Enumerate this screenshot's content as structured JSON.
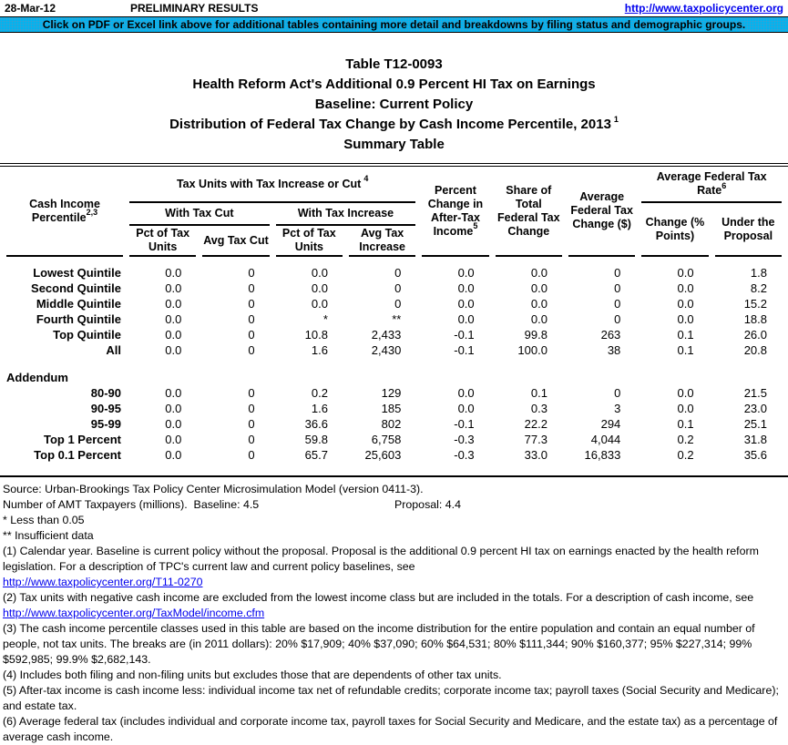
{
  "header_bar": {
    "date": "28-Mar-12",
    "status": "PRELIMINARY RESULTS",
    "url": "http://www.taxpolicycenter.org"
  },
  "banner": {
    "text": "Click on PDF or Excel link above for additional tables containing more detail and breakdowns by filing status and demographic groups.",
    "background_color": "#00B0F0"
  },
  "title": {
    "line1": "Table T12-0093",
    "line2": "Health Reform Act's Additional 0.9 Percent HI Tax on Earnings",
    "line3": "Baseline: Current Policy",
    "line4_text": "Distribution of Federal Tax Change by Cash Income Percentile, 2013",
    "line4_sup": "1",
    "line5": "Summary Table"
  },
  "table": {
    "headers": {
      "cash_income": {
        "text": "Cash Income Percentile",
        "sup": "2,3"
      },
      "tax_units_group": {
        "text": "Tax Units with Tax Increase or Cut",
        "sup": "4"
      },
      "with_tax_cut": "With Tax Cut",
      "with_tax_increase": "With Tax Increase",
      "pct_of_tax_units": "Pct of Tax Units",
      "avg_tax_cut": "Avg Tax Cut",
      "pct_of_tax_units_2": "Pct of Tax Units",
      "avg_tax_increase": "Avg Tax Increase",
      "pct_change_after_tax": {
        "text": "Percent Change in After-Tax Income",
        "sup": "5"
      },
      "share_total": "Share of Total Federal Tax Change",
      "avg_federal_tax_change": "Average Federal Tax Change ($)",
      "avg_federal_tax_rate_group": {
        "text": "Average Federal Tax Rate",
        "sup": "6"
      },
      "change_points": "Change (% Points)",
      "under_proposal": "Under the Proposal"
    },
    "main_rows": [
      {
        "label": "Lowest Quintile",
        "values": [
          "0.0",
          "0",
          "0.0",
          "0",
          "0.0",
          "0.0",
          "0",
          "0.0",
          "1.8"
        ]
      },
      {
        "label": "Second Quintile",
        "values": [
          "0.0",
          "0",
          "0.0",
          "0",
          "0.0",
          "0.0",
          "0",
          "0.0",
          "8.2"
        ]
      },
      {
        "label": "Middle Quintile",
        "values": [
          "0.0",
          "0",
          "0.0",
          "0",
          "0.0",
          "0.0",
          "0",
          "0.0",
          "15.2"
        ]
      },
      {
        "label": "Fourth Quintile",
        "values": [
          "0.0",
          "0",
          "*",
          "**",
          "0.0",
          "0.0",
          "0",
          "0.0",
          "18.8"
        ]
      },
      {
        "label": "Top Quintile",
        "values": [
          "0.0",
          "0",
          "10.8",
          "2,433",
          "-0.1",
          "99.8",
          "263",
          "0.1",
          "26.0"
        ]
      },
      {
        "label": "All",
        "values": [
          "0.0",
          "0",
          "1.6",
          "2,430",
          "-0.1",
          "100.0",
          "38",
          "0.1",
          "20.8"
        ]
      }
    ],
    "addendum_label": "Addendum",
    "addendum_rows": [
      {
        "label": "80-90",
        "values": [
          "0.0",
          "0",
          "0.2",
          "129",
          "0.0",
          "0.1",
          "0",
          "0.0",
          "21.5"
        ]
      },
      {
        "label": "90-95",
        "values": [
          "0.0",
          "0",
          "1.6",
          "185",
          "0.0",
          "0.3",
          "3",
          "0.0",
          "23.0"
        ]
      },
      {
        "label": "95-99",
        "values": [
          "0.0",
          "0",
          "36.6",
          "802",
          "-0.1",
          "22.2",
          "294",
          "0.1",
          "25.1"
        ]
      },
      {
        "label": "Top 1 Percent",
        "values": [
          "0.0",
          "0",
          "59.8",
          "6,758",
          "-0.3",
          "77.3",
          "4,044",
          "0.2",
          "31.8"
        ]
      },
      {
        "label": "Top 0.1 Percent",
        "values": [
          "0.0",
          "0",
          "65.7",
          "25,603",
          "-0.3",
          "33.0",
          "16,833",
          "0.2",
          "35.6"
        ]
      }
    ]
  },
  "footnotes": {
    "source": "Source: Urban-Brookings Tax Policy Center Microsimulation Model (version 0411-3).",
    "amt_left": "Number of AMT Taxpayers (millions).  Baseline: 4.5",
    "amt_right": "Proposal: 4.4",
    "items": [
      {
        "text": "* Less than 0.05"
      },
      {
        "text": "** Insufficient data"
      },
      {
        "text": "(1) Calendar year. Baseline is current policy without the proposal. Proposal is the additional 0.9 percent HI tax on earnings enacted by the health reform legislation. For a description of TPC's current law and current policy baselines, see"
      },
      {
        "link": "http://www.taxpolicycenter.org/T11-0270"
      },
      {
        "text": "(2) Tax units with negative cash income are excluded from the lowest income class but are included in the totals. For a description of cash income, see"
      },
      {
        "link": "http://www.taxpolicycenter.org/TaxModel/income.cfm"
      },
      {
        "text": "(3) The cash income percentile classes used in this table are based on the income distribution for the entire population and contain an equal number of people, not tax units. The breaks are (in 2011 dollars): 20% $17,909; 40% $37,090; 60% $64,531; 80% $111,344; 90% $160,377; 95% $227,314; 99% $592,985; 99.9% $2,682,143."
      },
      {
        "text": "(4) Includes both filing and non-filing units but excludes those that are dependents of other tax units."
      },
      {
        "text": "(5) After-tax income is cash income less: individual income tax net of refundable credits; corporate income tax; payroll taxes (Social Security and Medicare); and estate tax."
      },
      {
        "text": "(6) Average federal tax (includes individual and corporate income tax, payroll taxes for Social Security and Medicare, and the estate tax) as a percentage of average cash income."
      }
    ]
  }
}
